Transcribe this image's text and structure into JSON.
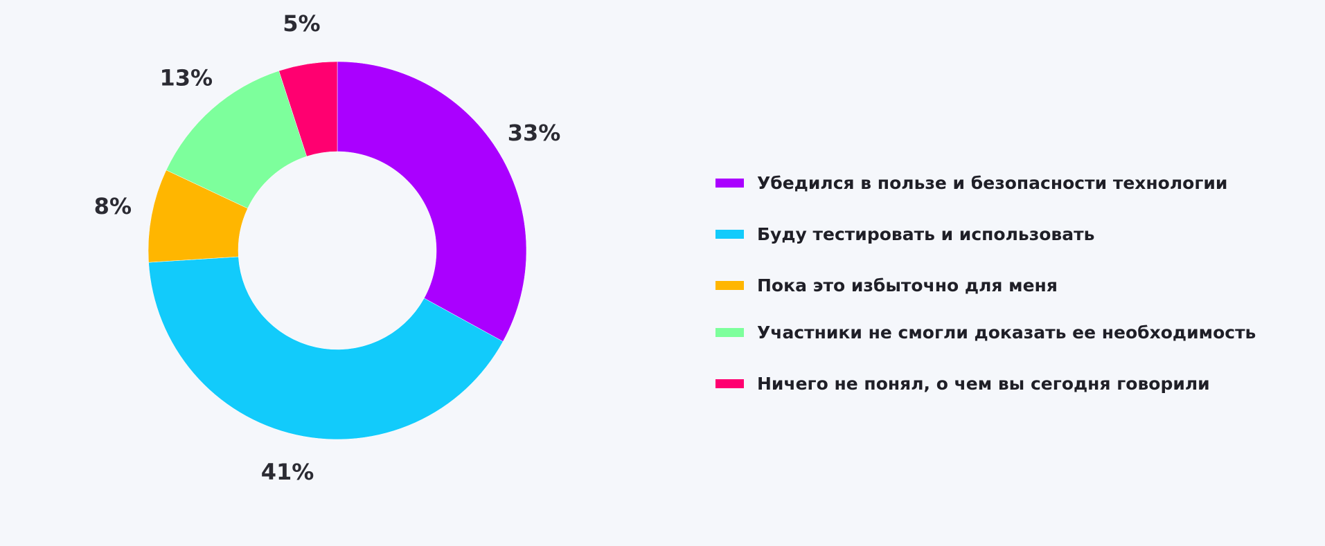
{
  "chart_data": {
    "type": "pie",
    "variant": "donut",
    "categories": [
      "Убедился в пользе и безопасности технологии",
      "Буду тестировать и использовать",
      "Пока это избыточно для меня",
      "Участники не смогли доказать ее необходимость",
      "Ничего не понял, о чем вы сегодня говорили"
    ],
    "values": [
      33,
      41,
      8,
      13,
      5
    ],
    "labels": [
      "33%",
      "41%",
      "8%",
      "13%",
      "5%"
    ],
    "colors": [
      "#aa00ff",
      "#12cbfb",
      "#ffb600",
      "#7dff9c",
      "#ff0070"
    ],
    "legend_position": "right",
    "title": "",
    "xlabel": "",
    "ylabel": ""
  }
}
